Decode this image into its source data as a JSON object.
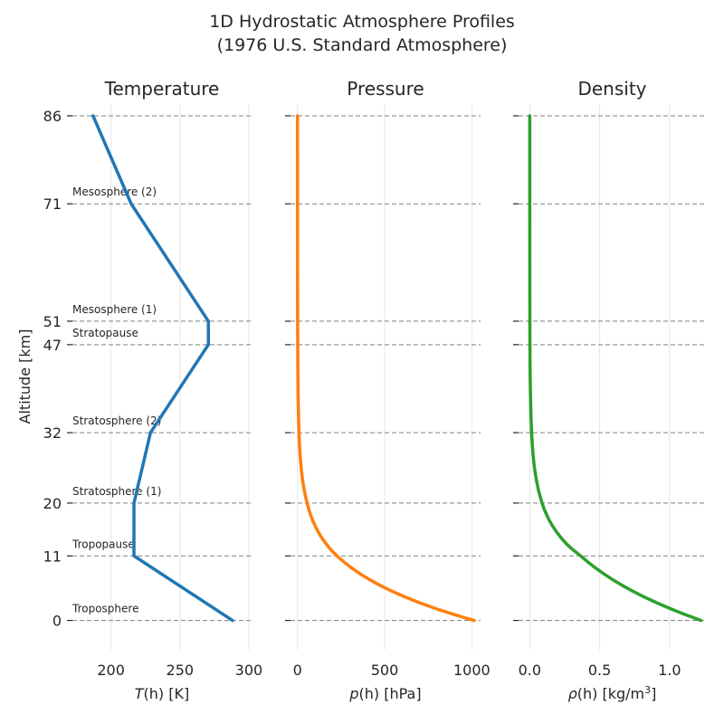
{
  "title_line1": "1D Hydrostatic Atmosphere Profiles",
  "title_line2": "(1976 U.S. Standard Atmosphere)",
  "ylabel": "Altitude [km]",
  "yticks": [
    0,
    11,
    20,
    32,
    47,
    51,
    71,
    86
  ],
  "layers": [
    {
      "label": "Troposphere",
      "base": 0
    },
    {
      "label": "Tropopause",
      "base": 11
    },
    {
      "label": "Stratosphere (1)",
      "base": 20
    },
    {
      "label": "Stratosphere (2)",
      "base": 32
    },
    {
      "label": "Stratopause",
      "base": 47
    },
    {
      "label": "Mesosphere (1)",
      "base": 51
    },
    {
      "label": "Mesosphere (2)",
      "base": 71
    }
  ],
  "chart_data": [
    {
      "type": "line",
      "title": "Temperature",
      "xlabel_prefix": "T",
      "xlabel_suffix": "(h) [K]",
      "color": "#1f77b4",
      "xlim": [
        172,
        302
      ],
      "xticks": [
        200,
        250,
        300
      ],
      "ylim": [
        -5,
        88
      ],
      "x": [
        288.15,
        216.65,
        216.65,
        228.65,
        270.65,
        270.65,
        214.65,
        186.95
      ],
      "y": [
        0,
        11,
        20,
        32,
        47,
        51,
        71,
        86
      ]
    },
    {
      "type": "line",
      "title": "Pressure",
      "xlabel_prefix": "p",
      "xlabel_suffix": "(h) [hPa]",
      "color": "#ff7f0e",
      "xlim": [
        -40,
        1050
      ],
      "xticks": [
        0,
        500,
        1000
      ],
      "ylim": [
        -5,
        88
      ],
      "x": [
        1013.25,
        898.8,
        795.0,
        701.2,
        616.6,
        540.5,
        472.2,
        411.1,
        356.5,
        308.0,
        265.0,
        226.32,
        193.3,
        165.1,
        141.0,
        120.4,
        102.9,
        87.8,
        75.0,
        64.1,
        54.75,
        39.7,
        28.9,
        21.1,
        15.5,
        11.4,
        8.68,
        6.6,
        5.07,
        3.9,
        3.03,
        2.37,
        1.87,
        1.43,
        1.09,
        0.798,
        0.58,
        0.42,
        0.3,
        0.21,
        0.146,
        0.1,
        0.068,
        0.045,
        0.0373
      ],
      "y": [
        0,
        1,
        2,
        3,
        4,
        5,
        6,
        7,
        8,
        9,
        10,
        11,
        12,
        13,
        14,
        15,
        16,
        17,
        18,
        19,
        20,
        22,
        24,
        26,
        28,
        30,
        32,
        34,
        36,
        38,
        40,
        42,
        44,
        47,
        49,
        51,
        54,
        57,
        60,
        63,
        66,
        71,
        75,
        80,
        86
      ]
    },
    {
      "type": "line",
      "title": "Density",
      "xlabel_prefix": "ρ",
      "xlabel_suffix": "(h) [kg/m",
      "xlabel_sup": "3",
      "xlabel_end": "]",
      "color": "#2ca02c",
      "xlim": [
        -0.08,
        1.26
      ],
      "xticks": [
        0.0,
        0.5,
        1.0
      ],
      "xtick_labels": [
        "0.0",
        "0.5",
        "1.0"
      ],
      "ylim": [
        -5,
        88
      ],
      "x": [
        1.225,
        1.112,
        1.007,
        0.909,
        0.819,
        0.736,
        0.66,
        0.59,
        0.526,
        0.467,
        0.414,
        0.364,
        0.311,
        0.265,
        0.227,
        0.194,
        0.166,
        0.141,
        0.121,
        0.103,
        0.088,
        0.064,
        0.0469,
        0.0337,
        0.0245,
        0.018,
        0.0132,
        0.0099,
        0.0074,
        0.0055,
        0.004,
        0.0028,
        0.0019,
        0.0014,
        0.001,
        0.00086,
        0.00065,
        0.00049,
        0.00036,
        0.00026,
        0.00018,
        6.4e-05,
        2e-05,
        7e-06
      ],
      "y": [
        0,
        1,
        2,
        3,
        4,
        5,
        6,
        7,
        8,
        9,
        10,
        11,
        12,
        13,
        14,
        15,
        16,
        17,
        18,
        19,
        20,
        22,
        24,
        26,
        28,
        30,
        32,
        34,
        36,
        38,
        40,
        42,
        44,
        47,
        49,
        51,
        54,
        57,
        60,
        63,
        66,
        71,
        80,
        86
      ]
    }
  ]
}
